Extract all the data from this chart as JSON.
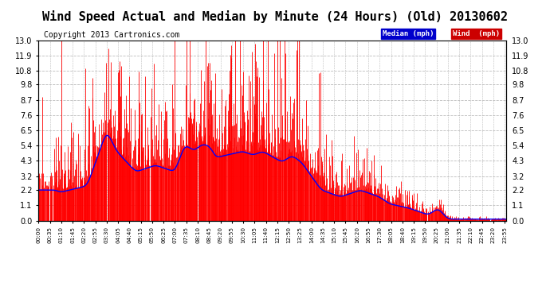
{
  "title": "Wind Speed Actual and Median by Minute (24 Hours) (Old) 20130602",
  "copyright": "Copyright 2013 Cartronics.com",
  "yticks": [
    0.0,
    1.1,
    2.2,
    3.2,
    4.3,
    5.4,
    6.5,
    7.6,
    8.7,
    9.8,
    10.8,
    11.9,
    13.0
  ],
  "ylim": [
    0.0,
    13.0
  ],
  "legend_median_color": "#0000cc",
  "legend_wind_color": "#cc0000",
  "legend_median_label": "Median (mph)",
  "legend_wind_label": "Wind  (mph)",
  "background_color": "#ffffff",
  "grid_color": "#bbbbbb",
  "title_fontsize": 11,
  "copyright_fontsize": 7,
  "tick_interval_minutes": 35
}
